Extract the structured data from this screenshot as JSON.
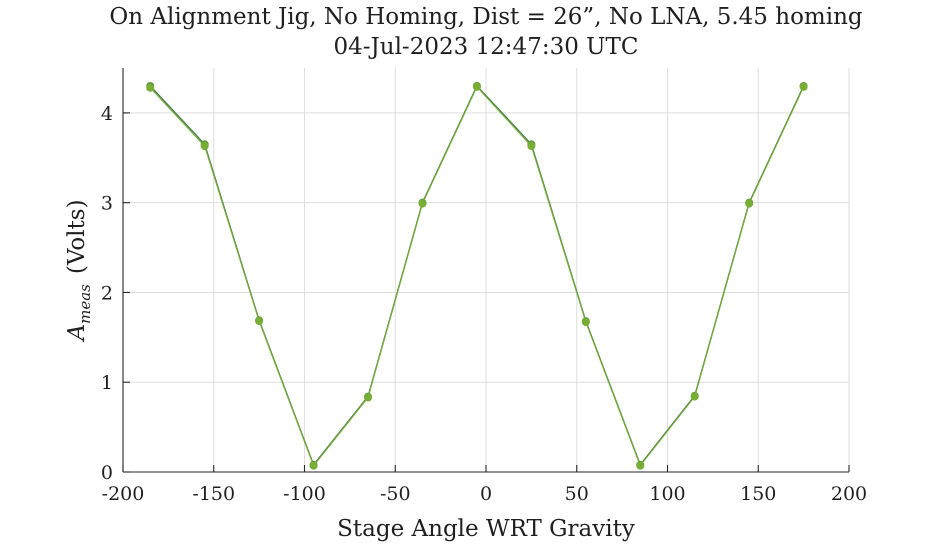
{
  "chart_data": {
    "type": "line",
    "title": "On Alignment Jig, No Homing, Dist = 26”, No LNA, 5.45 homing",
    "subtitle": "04-Jul-2023 12:47:30 UTC",
    "xlabel": "Stage Angle WRT Gravity",
    "ylabel_main": "A",
    "ylabel_sub": "meas",
    "ylabel_unit": "(Volts)",
    "xlim": [
      -200,
      200
    ],
    "ylim": [
      0,
      4.5
    ],
    "xticks": [
      -200,
      -150,
      -100,
      -50,
      0,
      50,
      100,
      150,
      200
    ],
    "xtick_labels": [
      "-200",
      "-150",
      "-100",
      "-50",
      "0",
      "50",
      "100",
      "150",
      "200"
    ],
    "yticks": [
      0,
      1,
      2,
      3,
      4
    ],
    "ytick_labels": [
      "0",
      "1",
      "2",
      "3",
      "4"
    ],
    "grid": true,
    "series": [
      {
        "color": "#4a7f52",
        "marker_color": "#5e9a3c",
        "x": [
          -185,
          -155,
          -125,
          -95,
          -65,
          -35,
          -5,
          25,
          55,
          85,
          115,
          145,
          175
        ],
        "y": [
          4.3,
          3.65,
          1.69,
          0.08,
          0.84,
          3.0,
          4.3,
          3.65,
          1.68,
          0.08,
          0.85,
          3.0,
          4.3
        ]
      },
      {
        "color": "#77ae35",
        "marker_color": "#77ae35",
        "x": [
          -185,
          -155,
          -125,
          -95,
          -65,
          -35,
          -5,
          25,
          55,
          85,
          115,
          145,
          175
        ],
        "y": [
          4.28,
          3.63,
          1.68,
          0.07,
          0.83,
          2.99,
          4.29,
          3.63,
          1.67,
          0.07,
          0.84,
          2.99,
          4.29
        ]
      }
    ]
  }
}
